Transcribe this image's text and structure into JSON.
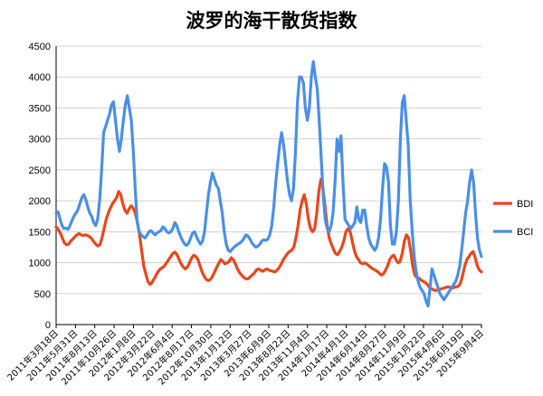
{
  "chart_data": {
    "type": "line",
    "title": "波罗的海干散货指数",
    "xlabel": "",
    "ylabel": "",
    "ylim": [
      0,
      4500
    ],
    "yticks": [
      0,
      500,
      1000,
      1500,
      2000,
      2500,
      3000,
      3500,
      4000,
      4500
    ],
    "grid": "horizontal",
    "legend_position": "right",
    "x_tick_labels": [
      "2011年3月18日",
      "2011年5月31日",
      "2011年8月13日",
      "2011年10月26日",
      "2012年1月8日",
      "2012年3月22日",
      "2012年6月4日",
      "2012年8月17日",
      "2012年10月30日",
      "2013年1月12日",
      "2013年3月27日",
      "2013年6月9日",
      "2013年8月22日",
      "2013年11月4日",
      "2014年1月17日",
      "2014年4月1日",
      "2014年6月14日",
      "2014年8月27日",
      "2014年11月9日",
      "2015年1月22日",
      "2015年4月6日",
      "2015年6月19日",
      "2015年9月4日"
    ],
    "series": [
      {
        "name": "BDI",
        "color": "#e8471c",
        "values": [
          1580,
          1540,
          1480,
          1400,
          1320,
          1290,
          1300,
          1350,
          1380,
          1420,
          1450,
          1470,
          1450,
          1440,
          1450,
          1440,
          1420,
          1390,
          1340,
          1300,
          1270,
          1290,
          1400,
          1550,
          1700,
          1800,
          1880,
          1950,
          2000,
          2050,
          2150,
          2100,
          1950,
          1850,
          1800,
          1870,
          1920,
          1880,
          1800,
          1650,
          1450,
          1200,
          950,
          820,
          700,
          650,
          680,
          740,
          800,
          860,
          900,
          920,
          950,
          1000,
          1050,
          1100,
          1150,
          1170,
          1130,
          1050,
          980,
          930,
          900,
          930,
          1000,
          1080,
          1120,
          1100,
          1050,
          950,
          850,
          780,
          730,
          710,
          730,
          780,
          850,
          920,
          990,
          1050,
          1020,
          980,
          1000,
          1020,
          1080,
          1050,
          980,
          900,
          840,
          800,
          760,
          740,
          740,
          770,
          800,
          830,
          880,
          900,
          880,
          860,
          880,
          900,
          880,
          870,
          860,
          850,
          880,
          920,
          980,
          1050,
          1100,
          1150,
          1180,
          1200,
          1250,
          1400,
          1600,
          1850,
          2000,
          2100,
          1950,
          1700,
          1550,
          1500,
          1550,
          1800,
          2150,
          2350,
          2200,
          1900,
          1600,
          1400,
          1300,
          1220,
          1150,
          1130,
          1180,
          1250,
          1350,
          1500,
          1550,
          1500,
          1350,
          1200,
          1100,
          1050,
          1000,
          980,
          1000,
          980,
          950,
          920,
          900,
          880,
          860,
          830,
          800,
          820,
          880,
          950,
          1050,
          1100,
          1120,
          1050,
          1000,
          1020,
          1150,
          1350,
          1450,
          1400,
          1200,
          950,
          800,
          760,
          750,
          720,
          700,
          680,
          650,
          600,
          580,
          560,
          550,
          560,
          570,
          580,
          590,
          600,
          610,
          600,
          590,
          600,
          610,
          620,
          680,
          800,
          950,
          1050,
          1100,
          1150,
          1180,
          1080,
          950,
          880,
          850
        ]
      },
      {
        "name": "BCI",
        "color": "#4a8fe7",
        "values": [
          1800,
          1820,
          1700,
          1600,
          1550,
          1560,
          1540,
          1600,
          1680,
          1750,
          1800,
          1850,
          1950,
          2050,
          2100,
          2020,
          1900,
          1800,
          1750,
          1650,
          1600,
          1700,
          2000,
          2500,
          3100,
          3200,
          3300,
          3400,
          3550,
          3600,
          3300,
          3000,
          2800,
          3000,
          3300,
          3550,
          3700,
          3500,
          3300,
          2800,
          2200,
          1650,
          1500,
          1450,
          1420,
          1400,
          1450,
          1500,
          1520,
          1480,
          1450,
          1480,
          1500,
          1520,
          1580,
          1550,
          1500,
          1480,
          1500,
          1550,
          1650,
          1600,
          1500,
          1420,
          1350,
          1300,
          1280,
          1320,
          1400,
          1480,
          1500,
          1420,
          1350,
          1300,
          1350,
          1500,
          1800,
          2100,
          2300,
          2450,
          2350,
          2250,
          2200,
          2000,
          1800,
          1500,
          1300,
          1200,
          1180,
          1220,
          1250,
          1280,
          1300,
          1320,
          1350,
          1400,
          1450,
          1430,
          1380,
          1320,
          1280,
          1250,
          1270,
          1300,
          1350,
          1370,
          1360,
          1380,
          1450,
          1600,
          1900,
          2300,
          2600,
          2900,
          3100,
          2900,
          2600,
          2300,
          2100,
          2000,
          2200,
          2800,
          3600,
          4000,
          4000,
          3900,
          3500,
          3300,
          3500,
          4000,
          4250,
          4000,
          3800,
          3300,
          2700,
          2100,
          1700,
          1550,
          1500,
          1600,
          1800,
          2300,
          3000,
          2800,
          3050,
          2300,
          1700,
          1650,
          1600,
          1550,
          1600,
          1650,
          1900,
          1700,
          1650,
          1850,
          1850,
          1600,
          1400,
          1300,
          1250,
          1200,
          1250,
          1400,
          1700,
          2200,
          2600,
          2550,
          2300,
          1600,
          1300,
          1300,
          1500,
          2000,
          3000,
          3600,
          3700,
          3300,
          2900,
          2000,
          1500,
          1100,
          850,
          700,
          600,
          550,
          500,
          380,
          300,
          600,
          900,
          800,
          700,
          600,
          500,
          450,
          400,
          450,
          500,
          550,
          600,
          650,
          700,
          800,
          950,
          1200,
          1500,
          1800,
          2000,
          2300,
          2500,
          2300,
          1800,
          1400,
          1200,
          1100
        ]
      }
    ]
  }
}
